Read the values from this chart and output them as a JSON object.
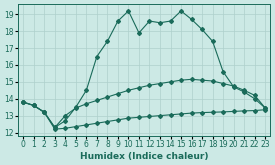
{
  "xlabel": "Humidex (Indice chaleur)",
  "background_color": "#cce9e5",
  "grid_color": "#aed0cc",
  "line_color": "#1a6b5a",
  "xlim": [
    -0.5,
    23.5
  ],
  "ylim": [
    11.8,
    19.6
  ],
  "yticks": [
    12,
    13,
    14,
    15,
    16,
    17,
    18,
    19
  ],
  "xticks": [
    0,
    1,
    2,
    3,
    4,
    5,
    6,
    7,
    8,
    9,
    10,
    11,
    12,
    13,
    14,
    15,
    16,
    17,
    18,
    19,
    20,
    21,
    22,
    23
  ],
  "series_top_x": [
    0,
    1,
    2,
    3,
    4,
    5,
    6,
    7,
    8,
    9,
    10,
    11,
    12,
    13,
    14,
    15,
    16,
    17,
    18,
    19,
    20,
    21,
    22,
    23
  ],
  "series_top_y": [
    13.8,
    13.6,
    13.2,
    12.3,
    12.7,
    13.5,
    14.5,
    16.5,
    17.4,
    18.6,
    19.2,
    17.9,
    18.6,
    18.5,
    18.6,
    19.2,
    18.7,
    18.1,
    17.4,
    15.6,
    14.7,
    14.4,
    14.0,
    13.45
  ],
  "series_mid_x": [
    0,
    1,
    2,
    3,
    4,
    5,
    6,
    7,
    8,
    9,
    10,
    11,
    12,
    13,
    14,
    15,
    16,
    17,
    18,
    19,
    20,
    21,
    22,
    23
  ],
  "series_mid_y": [
    13.8,
    13.6,
    13.2,
    12.3,
    13.0,
    13.45,
    13.7,
    13.9,
    14.1,
    14.3,
    14.5,
    14.65,
    14.8,
    14.9,
    15.0,
    15.1,
    15.15,
    15.1,
    15.05,
    14.9,
    14.75,
    14.5,
    14.2,
    13.45
  ],
  "series_bot_x": [
    0,
    1,
    2,
    3,
    4,
    5,
    6,
    7,
    8,
    9,
    10,
    11,
    12,
    13,
    14,
    15,
    16,
    17,
    18,
    19,
    20,
    21,
    22,
    23
  ],
  "series_bot_y": [
    13.8,
    13.6,
    13.2,
    12.2,
    12.25,
    12.35,
    12.45,
    12.55,
    12.65,
    12.75,
    12.85,
    12.9,
    12.95,
    13.0,
    13.05,
    13.1,
    13.15,
    13.18,
    13.2,
    13.22,
    13.25,
    13.28,
    13.3,
    13.35
  ]
}
